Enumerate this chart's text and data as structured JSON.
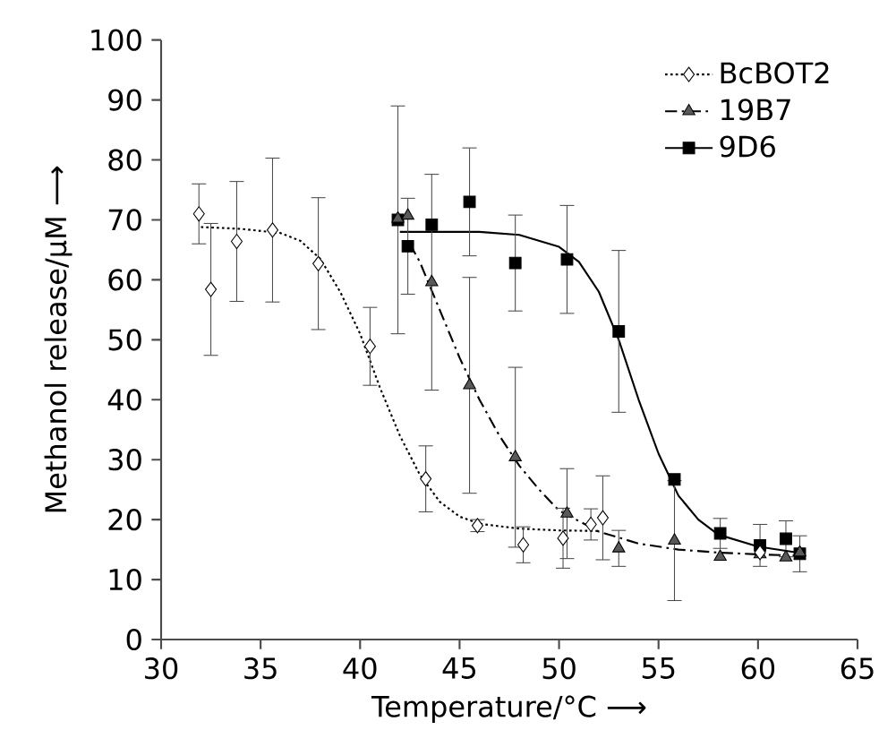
{
  "chart_data": {
    "type": "scatter",
    "xlabel": "Temperature/°C ⟶",
    "ylabel": "Methanol release/μM ⟶",
    "xlim": [
      30,
      65
    ],
    "ylim": [
      0,
      100
    ],
    "xticks": [
      30,
      35,
      40,
      45,
      50,
      55,
      60,
      65
    ],
    "yticks": [
      0,
      10,
      20,
      30,
      40,
      50,
      60,
      70,
      80,
      90,
      100
    ],
    "legend": "top right",
    "series": [
      {
        "type": "line",
        "color": "#000000",
        "line_style": "dotted",
        "marker": "none",
        "x": [
          32,
          34,
          36,
          37,
          38,
          39,
          40,
          41,
          42,
          43,
          44,
          45,
          46,
          48,
          50,
          52
        ],
        "values": [
          68.8,
          68.5,
          67.8,
          66.5,
          63.5,
          58,
          51,
          42,
          34,
          27.5,
          23,
          20.5,
          19.3,
          18.5,
          18.2,
          18.1
        ]
      },
      {
        "type": "line",
        "color": "#000000",
        "line_style": "dashed",
        "marker": "none",
        "x": [
          42.5,
          43,
          44,
          45,
          46,
          47,
          48,
          49,
          50,
          52,
          54,
          56,
          58,
          60,
          62
        ],
        "values": [
          66,
          63,
          55,
          47,
          40,
          34,
          29,
          25,
          21.5,
          18,
          16,
          15,
          14.5,
          14.2,
          14
        ]
      },
      {
        "type": "line",
        "color": "#000000",
        "line_style": "solid",
        "marker": "none",
        "x": [
          42,
          44,
          46,
          48,
          50,
          51,
          52,
          53,
          54,
          55,
          56,
          57,
          58,
          60,
          62
        ],
        "values": [
          68,
          68,
          68,
          67.5,
          65.5,
          63,
          58,
          50,
          40,
          31,
          24,
          20,
          17.5,
          15.5,
          14.5
        ]
      },
      {
        "name": "BcBOT2",
        "color": "#ffffff",
        "marker": "diamond",
        "line_style": "dotted",
        "x": [
          31.9,
          32.5,
          33.8,
          35.6,
          37.9,
          40.5,
          43.3,
          45.9,
          48.2,
          50.2,
          51.6,
          52.2,
          60.1
        ],
        "values": [
          71,
          58.4,
          66.4,
          68.3,
          62.7,
          48.9,
          26.8,
          19,
          15.8,
          16.9,
          19.2,
          20.3,
          14.5
        ],
        "errors": [
          5,
          11,
          10,
          12,
          11,
          6.5,
          5.5,
          1,
          3,
          5,
          2.6,
          7,
          null
        ]
      },
      {
        "name": "19B7",
        "color": "#595959",
        "marker": "triangle",
        "line_style": "dashed",
        "x": [
          41.9,
          42.4,
          43.6,
          45.5,
          47.8,
          50.4,
          53.0,
          55.8,
          58.1,
          60.1,
          61.4,
          62.1
        ],
        "values": [
          70.2,
          70.7,
          59.6,
          42.4,
          30.4,
          21,
          15.2,
          16.5,
          13.8,
          14.2,
          13.7,
          14.5
        ],
        "errors": [
          null,
          null,
          18,
          18,
          15,
          7.5,
          3,
          10,
          null,
          null,
          null,
          null
        ]
      },
      {
        "name": "9D6",
        "color": "#000000",
        "marker": "square",
        "line_style": "solid",
        "x": [
          41.9,
          42.4,
          43.6,
          45.5,
          47.8,
          50.4,
          53.0,
          55.8,
          58.1,
          60.1,
          61.4,
          62.1
        ],
        "values": [
          70,
          65.6,
          69.2,
          73,
          62.8,
          63.4,
          51.4,
          26.7,
          17.7,
          15.7,
          16.8,
          14.3
        ],
        "errors": [
          19,
          8,
          null,
          9,
          8,
          9,
          13.5,
          null,
          2.5,
          3.5,
          3,
          3
        ]
      }
    ]
  }
}
